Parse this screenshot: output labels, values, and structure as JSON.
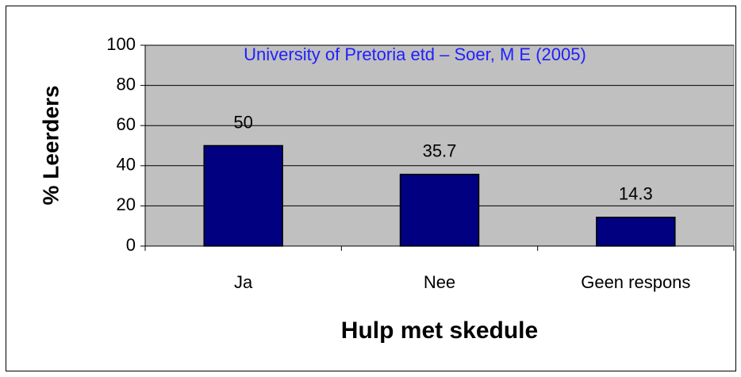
{
  "chart_data": {
    "type": "bar",
    "annotation": "University of Pretoria etd – Soer, M E  (2005)",
    "x_label": "Hulp met skedule",
    "y_label": "% Leerders",
    "categories": [
      "Ja",
      "Nee",
      "Geen respons"
    ],
    "values": [
      50,
      35.7,
      14.3
    ],
    "color": "#000080",
    "ylim": [
      0,
      100
    ],
    "yticks": [
      0,
      20,
      40,
      60,
      80,
      100
    ],
    "grid": true
  }
}
